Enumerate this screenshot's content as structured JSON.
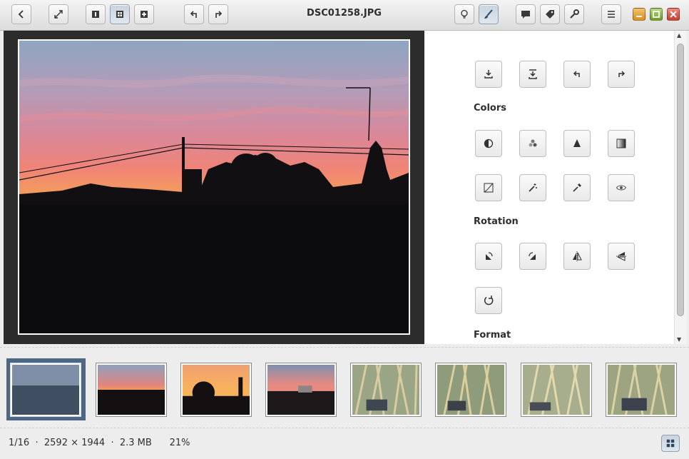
{
  "window": {
    "title": "DSC01258.JPG",
    "buttons": [
      "minimize",
      "maximize",
      "close"
    ]
  },
  "header": {
    "left_buttons": [
      "back-icon",
      "fullscreen-icon",
      "single-view-icon",
      "grid-view-icon",
      "add-icon",
      "undo-icon",
      "redo-icon"
    ],
    "right_buttons": [
      "info-icon",
      "edit-brush-icon",
      "comment-icon",
      "tag-icon",
      "tools-wrench-icon",
      "menu-icon"
    ]
  },
  "panel": {
    "top_tools": [
      "save-icon",
      "save-as-icon",
      "undo-icon",
      "redo-icon"
    ],
    "sections": [
      {
        "title": "Colors",
        "tools": [
          "contrast-icon",
          "channels-icon",
          "levels-icon",
          "gradient-icon",
          "curves-icon",
          "magic-icon",
          "eyedropper-icon",
          "red-eye-icon"
        ]
      },
      {
        "title": "Rotation",
        "tools": [
          "rotate-left-icon",
          "rotate-right-icon",
          "flip-horizontal-icon",
          "flip-vertical-icon",
          "reset-rotation-icon"
        ]
      },
      {
        "title": "Format",
        "tools": []
      }
    ]
  },
  "thumbnails": {
    "count": 8,
    "selected_index": 0
  },
  "status": {
    "position": "1/16",
    "dimensions": "2592 × 1944",
    "size": "2.3 MB",
    "zoom": "21%",
    "separator": "·"
  },
  "colors": {
    "selection": "#4d6884",
    "viewer_bg": "#2c2c2c",
    "close": "#d9534a",
    "maximize": "#8bb83c",
    "minimize": "#e6a23c"
  }
}
